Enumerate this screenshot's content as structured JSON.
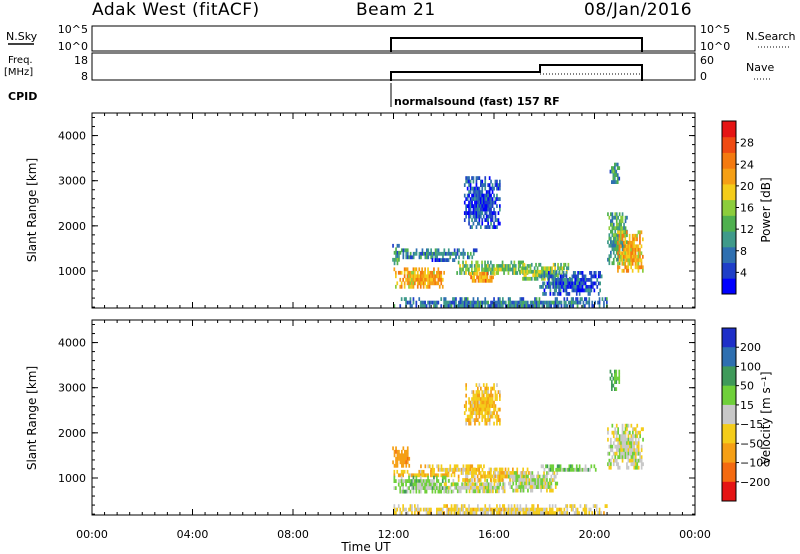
{
  "header": {
    "station": "Adak West (fitACF)",
    "beam": "Beam 21",
    "date": "08/Jan/2016"
  },
  "panels": {
    "nsky": {
      "label": "N.Sky",
      "ticks": [
        "10^5",
        "10^0"
      ],
      "right_ticks": [
        "10^5",
        "10^0"
      ],
      "right_label": "N.Search"
    },
    "freq": {
      "label_line1": "Freq.",
      "label_line2": "[MHz]",
      "ticks": [
        "18",
        "8"
      ],
      "right_ticks": [
        "60",
        "0"
      ],
      "right_label": "Nave"
    },
    "cpid": {
      "label": "CPID",
      "program": "normalsound (fast) 157 RF"
    }
  },
  "chart_data": [
    {
      "type": "heatmap",
      "name": "power",
      "ylabel": "Slant Range [km]",
      "xlabel": "Time UT",
      "xlim": [
        0,
        24
      ],
      "ylim": [
        180,
        4500
      ],
      "yticks": [
        1000,
        2000,
        3000,
        4000
      ],
      "colorbar": {
        "label": "Power [dB]",
        "ticks": [
          4,
          8,
          12,
          16,
          20,
          24,
          28
        ],
        "range": [
          0,
          32
        ],
        "colors": [
          "#0000ff",
          "#1e3ec8",
          "#2e6fb0",
          "#3f9a8a",
          "#4fb04f",
          "#8ccd3c",
          "#f4cc1a",
          "#f59f15",
          "#f47a10",
          "#ef4a12",
          "#e51414"
        ]
      },
      "regions": [
        {
          "t": [
            11.95,
            12.25
          ],
          "r": [
            1180,
            1600
          ],
          "v": 10
        },
        {
          "t": [
            12.0,
            14.0
          ],
          "r": [
            680,
            1080
          ],
          "v": 21
        },
        {
          "t": [
            12.3,
            15.3
          ],
          "r": [
            1330,
            1500
          ],
          "v": 8
        },
        {
          "t": [
            13.4,
            14.5
          ],
          "r": [
            1240,
            1360
          ],
          "v": 6
        },
        {
          "t": [
            14.5,
            17.5
          ],
          "r": [
            950,
            1230
          ],
          "v": 14
        },
        {
          "t": [
            15.0,
            16.0
          ],
          "r": [
            750,
            980
          ],
          "v": 22
        },
        {
          "t": [
            17.0,
            19.0
          ],
          "r": [
            820,
            1180
          ],
          "v": 15
        },
        {
          "t": [
            17.8,
            20.3
          ],
          "r": [
            500,
            1000
          ],
          "v": 6
        },
        {
          "t": [
            12.0,
            20.5
          ],
          "r": [
            190,
            420
          ],
          "v": 8
        },
        {
          "t": [
            14.8,
            16.2
          ],
          "r": [
            2000,
            3100
          ],
          "v": 5
        },
        {
          "t": [
            20.5,
            21.3
          ],
          "r": [
            1200,
            2300
          ],
          "v": 12
        },
        {
          "t": [
            20.9,
            21.95
          ],
          "r": [
            1000,
            1900
          ],
          "v": 21
        },
        {
          "t": [
            20.6,
            21.0
          ],
          "r": [
            3000,
            3400
          ],
          "v": 10
        }
      ]
    },
    {
      "type": "heatmap",
      "name": "velocity",
      "ylabel": "Slant Range [km]",
      "xlabel": "Time UT",
      "xlim": [
        0,
        24
      ],
      "ylim": [
        180,
        4500
      ],
      "yticks": [
        1000,
        2000,
        3000,
        4000
      ],
      "colorbar": {
        "label": "Velocity [m s⁻¹]",
        "ticks": [
          "200",
          "100",
          "50",
          "15",
          "−15",
          "−50",
          "−100",
          "−200"
        ],
        "stops": [
          250,
          200,
          100,
          50,
          15,
          -15,
          -50,
          -100,
          -200,
          -250
        ],
        "colors": [
          "#1e2fc8",
          "#2e6fb0",
          "#3f9a5a",
          "#6fd03a",
          "#c8c8c8",
          "#f4cc1a",
          "#f59f15",
          "#f46a10",
          "#e51414"
        ]
      },
      "regions": [
        {
          "t": [
            11.95,
            12.6
          ],
          "r": [
            1300,
            1700
          ],
          "v": -80
        },
        {
          "t": [
            12.0,
            14.5
          ],
          "r": [
            1060,
            1180
          ],
          "v": -40
        },
        {
          "t": [
            12.0,
            14.3
          ],
          "r": [
            700,
            1050
          ],
          "v": 30
        },
        {
          "t": [
            13.0,
            16.0
          ],
          "r": [
            1150,
            1300
          ],
          "v": -30
        },
        {
          "t": [
            14.0,
            16.5
          ],
          "r": [
            700,
            980
          ],
          "v": 0
        },
        {
          "t": [
            14.5,
            17.5
          ],
          "r": [
            980,
            1230
          ],
          "v": -35
        },
        {
          "t": [
            16.5,
            18.5
          ],
          "r": [
            700,
            1150
          ],
          "v": 5
        },
        {
          "t": [
            17.8,
            20.3
          ],
          "r": [
            1150,
            1300
          ],
          "v": 30
        },
        {
          "t": [
            12.0,
            20.5
          ],
          "r": [
            200,
            420
          ],
          "v": -25
        },
        {
          "t": [
            14.8,
            16.2
          ],
          "r": [
            2200,
            3100
          ],
          "v": -40
        },
        {
          "t": [
            20.5,
            21.95
          ],
          "r": [
            1250,
            2200
          ],
          "v": 0
        },
        {
          "t": [
            20.6,
            21.0
          ],
          "r": [
            3000,
            3400
          ],
          "v": 60
        }
      ]
    }
  ],
  "xaxis": {
    "ticks": [
      "00:00",
      "04:00",
      "08:00",
      "12:00",
      "16:00",
      "20:00",
      "00:00"
    ],
    "label": "Time UT"
  }
}
